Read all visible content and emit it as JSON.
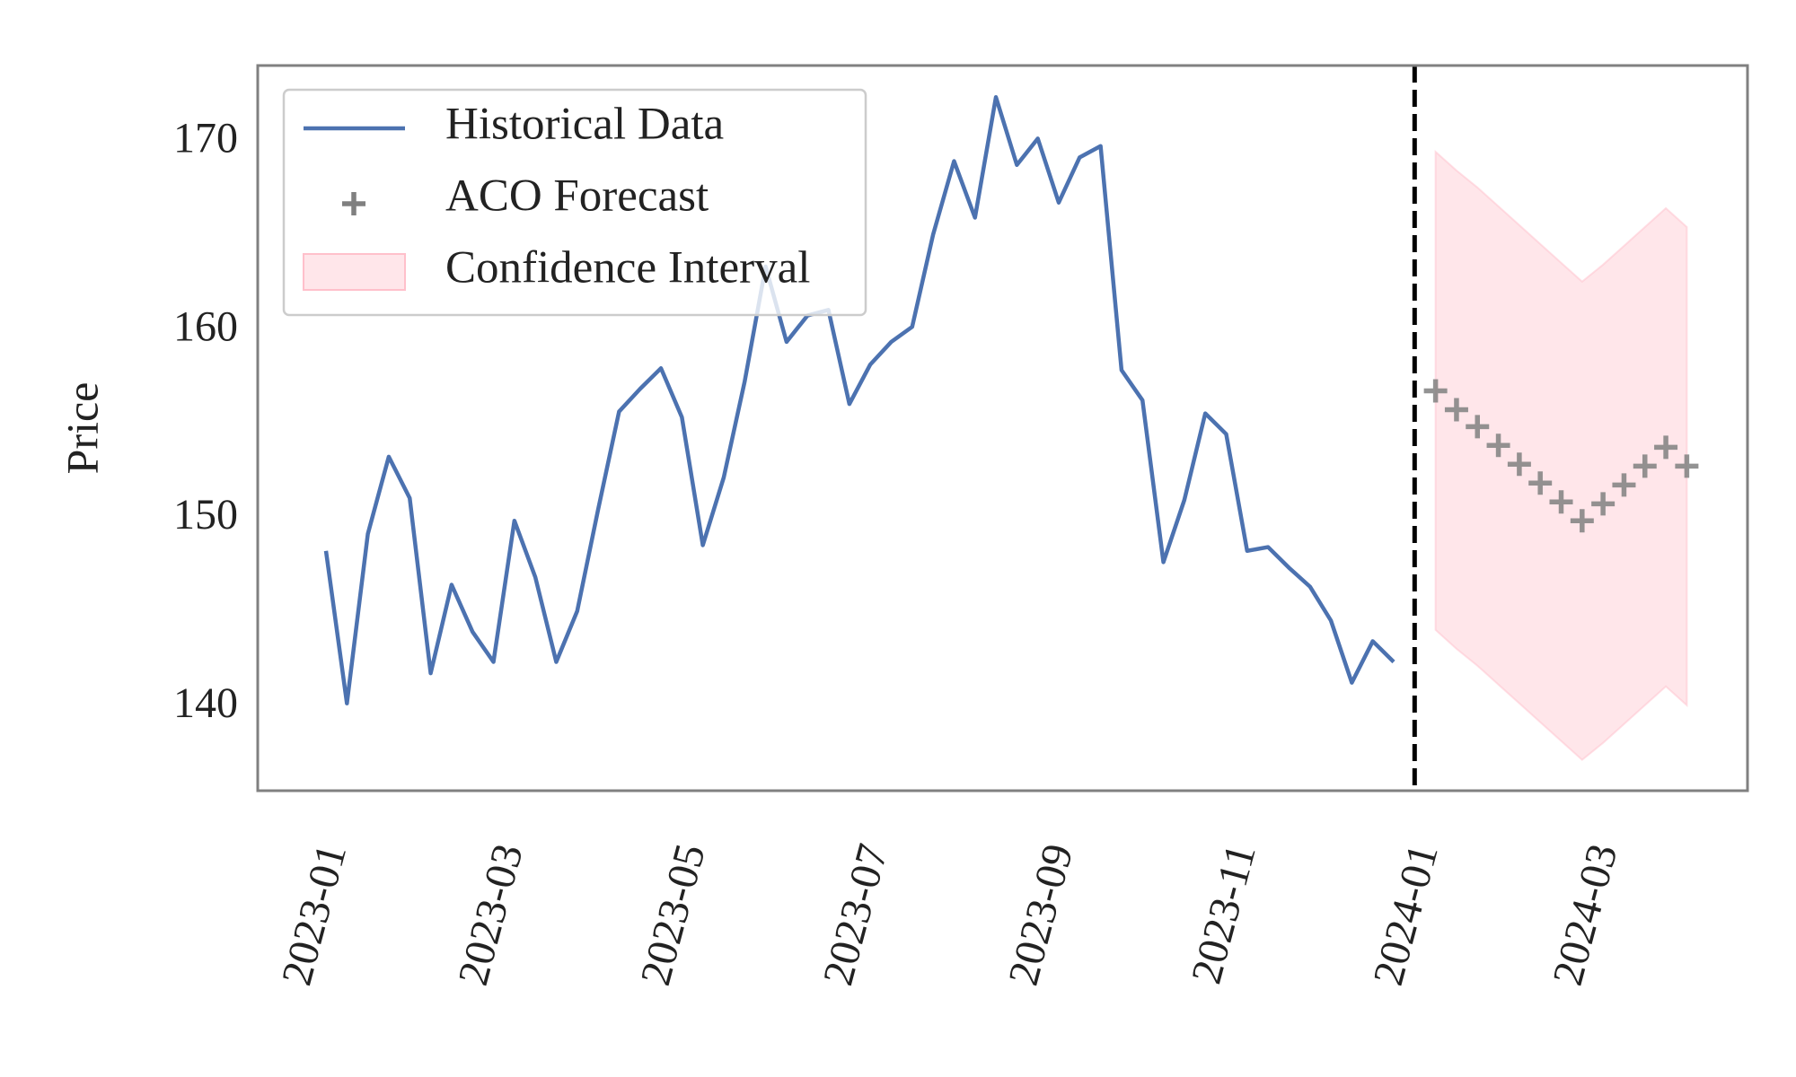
{
  "chart_data": {
    "type": "line",
    "y_label": "Price",
    "xlim": [
      -3.26,
      67.9
    ],
    "xticks": [
      {
        "value": 0,
        "label": "2023-01"
      },
      {
        "value": 8.43,
        "label": "2023-03"
      },
      {
        "value": 17.14,
        "label": "2023-05"
      },
      {
        "value": 25.86,
        "label": "2023-07"
      },
      {
        "value": 34.71,
        "label": "2023-09"
      },
      {
        "value": 43.43,
        "label": "2023-11"
      },
      {
        "value": 52.14,
        "label": "2024-01"
      },
      {
        "value": 60.71,
        "label": "2024-03"
      }
    ],
    "ylim": [
      135.56,
      174.08
    ],
    "yticks": [
      140,
      150,
      160,
      170
    ],
    "grid": false,
    "legend_loc": "upper left",
    "vline": 52,
    "series": [
      {
        "name": "Historical Data",
        "color": "#4c72b0",
        "style": "line",
        "x": [
          0,
          1,
          2,
          3,
          4,
          5,
          6,
          7,
          8,
          9,
          10,
          11,
          12,
          13,
          14,
          15,
          16,
          17,
          18,
          19,
          20,
          21,
          22,
          23,
          24,
          25,
          26,
          27,
          28,
          29,
          30,
          31,
          32,
          33,
          34,
          35,
          36,
          37,
          38,
          39,
          40,
          41,
          42,
          43,
          44,
          45,
          46,
          47,
          48,
          49,
          50,
          51
        ],
        "values": [
          148.3,
          140.2,
          149.2,
          153.3,
          151.1,
          141.8,
          146.5,
          144.0,
          142.4,
          149.9,
          146.9,
          142.4,
          145.1,
          150.5,
          155.7,
          156.9,
          158.0,
          155.4,
          148.6,
          152.2,
          157.3,
          163.4,
          159.4,
          160.8,
          161.1,
          156.1,
          158.2,
          159.4,
          160.2,
          165.1,
          169.0,
          166.0,
          172.4,
          168.8,
          170.2,
          166.8,
          169.2,
          169.8,
          157.9,
          156.3,
          147.7,
          151.0,
          155.6,
          154.5,
          148.3,
          148.5,
          147.4,
          146.4,
          144.6,
          141.3,
          143.5,
          142.4
        ]
      },
      {
        "name": "ACO Forecast",
        "color": "#808080",
        "style": "plus",
        "x": [
          53,
          54,
          55,
          56,
          57,
          58,
          59,
          60,
          61,
          62,
          63,
          64,
          65
        ],
        "values": [
          156.8,
          155.8,
          154.9,
          153.9,
          152.9,
          151.9,
          150.9,
          149.9,
          150.8,
          151.8,
          152.8,
          153.8,
          152.8
        ]
      },
      {
        "name": "Confidence Interval",
        "color": "#ffc0cb",
        "style": "band",
        "x": [
          53,
          54,
          55,
          56,
          57,
          58,
          59,
          60,
          61,
          62,
          63,
          64,
          65
        ],
        "lower": [
          144.1,
          143.1,
          142.2,
          141.2,
          140.2,
          139.2,
          138.2,
          137.2,
          138.1,
          139.1,
          140.1,
          141.1,
          140.1
        ],
        "upper": [
          169.5,
          168.5,
          167.6,
          166.6,
          165.6,
          164.6,
          163.6,
          162.6,
          163.5,
          164.5,
          165.5,
          166.5,
          165.5
        ]
      }
    ]
  }
}
